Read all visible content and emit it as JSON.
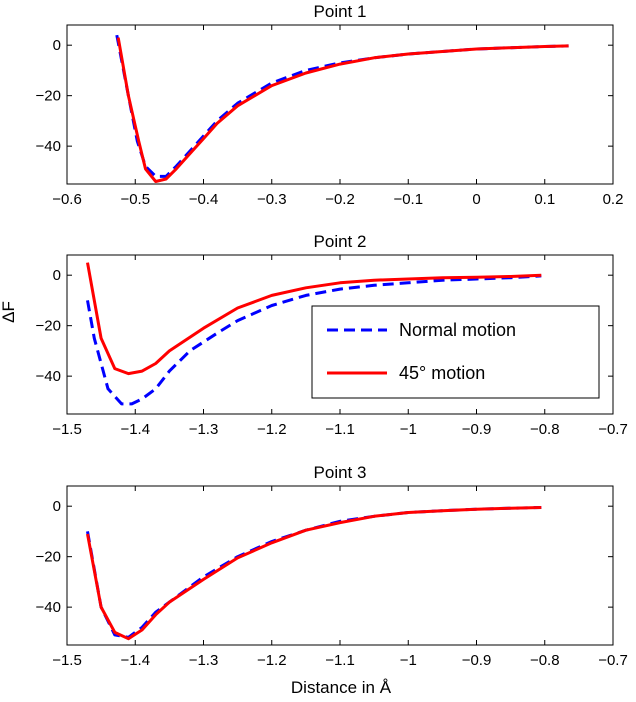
{
  "figure": {
    "ylabel": "ΔF",
    "xlabel": "Distance in Å",
    "colors": {
      "normal": "#0000FF",
      "motion45": "#FF0000",
      "axes": "#000000"
    }
  },
  "chart_data": [
    {
      "type": "line",
      "title": "Point 1",
      "xlim": [
        -0.6,
        0.2
      ],
      "ylim": [
        -55,
        8
      ],
      "xticks": [
        -0.6,
        -0.5,
        -0.4,
        -0.3,
        -0.2,
        -0.1,
        0,
        0.1,
        0.2
      ],
      "xtick_labels": [
        "−0.6",
        "−0.5",
        "−0.4",
        "−0.3",
        "−0.2",
        "−0.1",
        "0",
        "0.1",
        "0.2"
      ],
      "yticks": [
        0,
        -20,
        -40
      ],
      "ytick_labels": [
        "0",
        "−20",
        "−40"
      ],
      "series": [
        {
          "name": "Normal motion",
          "style": "dashed",
          "x": [
            -0.527,
            -0.51,
            -0.497,
            -0.485,
            -0.47,
            -0.455,
            -0.44,
            -0.42,
            -0.4,
            -0.38,
            -0.35,
            -0.3,
            -0.25,
            -0.2,
            -0.15,
            -0.1,
            -0.05,
            0.0,
            0.05,
            0.1,
            0.135
          ],
          "y": [
            4,
            -20,
            -38,
            -48,
            -52,
            -52,
            -48,
            -42,
            -36,
            -30,
            -23,
            -15,
            -10,
            -7,
            -5,
            -3.5,
            -2.5,
            -1.5,
            -1,
            -0.5,
            -0.3
          ]
        },
        {
          "name": "45° motion",
          "style": "solid",
          "x": [
            -0.525,
            -0.51,
            -0.495,
            -0.485,
            -0.47,
            -0.455,
            -0.44,
            -0.42,
            -0.4,
            -0.38,
            -0.35,
            -0.3,
            -0.25,
            -0.2,
            -0.15,
            -0.1,
            -0.05,
            0.0,
            0.05,
            0.1,
            0.135
          ],
          "y": [
            3,
            -20,
            -38,
            -49,
            -54,
            -53,
            -49,
            -43,
            -37,
            -31,
            -24,
            -16,
            -11,
            -7.5,
            -5,
            -3.5,
            -2.5,
            -1.5,
            -1,
            -0.5,
            -0.3
          ]
        }
      ]
    },
    {
      "type": "line",
      "title": "Point 2",
      "xlim": [
        -1.5,
        -0.7
      ],
      "ylim": [
        -55,
        8
      ],
      "xticks": [
        -1.5,
        -1.4,
        -1.3,
        -1.2,
        -1.1,
        -1.0,
        -0.9,
        -0.8,
        -0.7
      ],
      "xtick_labels": [
        "−1.5",
        "−1.4",
        "−1.3",
        "−1.2",
        "−1.1",
        "−1",
        "−0.9",
        "−0.8",
        "−0.7"
      ],
      "yticks": [
        0,
        -20,
        -40
      ],
      "ytick_labels": [
        "0",
        "−20",
        "−40"
      ],
      "legend": {
        "location": "center-right",
        "entries": [
          "Normal motion",
          "45° motion"
        ]
      },
      "series": [
        {
          "name": "Normal motion",
          "style": "dashed",
          "x": [
            -1.47,
            -1.46,
            -1.44,
            -1.42,
            -1.405,
            -1.39,
            -1.37,
            -1.35,
            -1.32,
            -1.28,
            -1.25,
            -1.2,
            -1.15,
            -1.1,
            -1.05,
            -1.0,
            -0.95,
            -0.9,
            -0.85,
            -0.805
          ],
          "y": [
            -10,
            -25,
            -45,
            -51,
            -51,
            -49,
            -45,
            -38,
            -30,
            -23,
            -18,
            -12,
            -8,
            -5.5,
            -4,
            -3,
            -2,
            -1.5,
            -1,
            -0.3
          ]
        },
        {
          "name": "45° motion",
          "style": "solid",
          "x": [
            -1.47,
            -1.45,
            -1.43,
            -1.41,
            -1.39,
            -1.37,
            -1.35,
            -1.3,
            -1.25,
            -1.2,
            -1.15,
            -1.1,
            -1.05,
            -1.0,
            -0.95,
            -0.9,
            -0.85,
            -0.805
          ],
          "y": [
            5,
            -25,
            -37,
            -39,
            -38,
            -35,
            -30,
            -21,
            -13,
            -8,
            -5,
            -3,
            -2,
            -1.5,
            -1,
            -0.8,
            -0.5,
            0
          ]
        }
      ]
    },
    {
      "type": "line",
      "title": "Point 3",
      "xlim": [
        -1.5,
        -0.7
      ],
      "ylim": [
        -55,
        8
      ],
      "xticks": [
        -1.5,
        -1.4,
        -1.3,
        -1.2,
        -1.1,
        -1.0,
        -0.9,
        -0.8,
        -0.7
      ],
      "xtick_labels": [
        "−1.5",
        "−1.4",
        "−1.3",
        "−1.2",
        "−1.1",
        "−1",
        "−0.9",
        "−0.8",
        "−0.7"
      ],
      "yticks": [
        0,
        -20,
        -40
      ],
      "ytick_labels": [
        "0",
        "−20",
        "−40"
      ],
      "series": [
        {
          "name": "Normal motion",
          "style": "dashed",
          "x": [
            -1.47,
            -1.45,
            -1.43,
            -1.41,
            -1.39,
            -1.37,
            -1.35,
            -1.3,
            -1.25,
            -1.2,
            -1.15,
            -1.1,
            -1.05,
            -1.0,
            -0.95,
            -0.9,
            -0.85,
            -0.805
          ],
          "y": [
            -10,
            -40,
            -51,
            -52,
            -48,
            -42,
            -38,
            -28,
            -20,
            -14,
            -9.5,
            -6,
            -4,
            -2.5,
            -1.8,
            -1.2,
            -0.8,
            -0.5
          ]
        },
        {
          "name": "45° motion",
          "style": "solid",
          "x": [
            -1.47,
            -1.45,
            -1.43,
            -1.41,
            -1.39,
            -1.37,
            -1.35,
            -1.3,
            -1.25,
            -1.2,
            -1.15,
            -1.1,
            -1.05,
            -1.0,
            -0.95,
            -0.9,
            -0.85,
            -0.805
          ],
          "y": [
            -11,
            -40,
            -50,
            -52.5,
            -49,
            -43,
            -38,
            -29,
            -20.5,
            -14.5,
            -9.5,
            -6.5,
            -4,
            -2.5,
            -1.8,
            -1.2,
            -0.8,
            -0.5
          ]
        }
      ]
    }
  ]
}
